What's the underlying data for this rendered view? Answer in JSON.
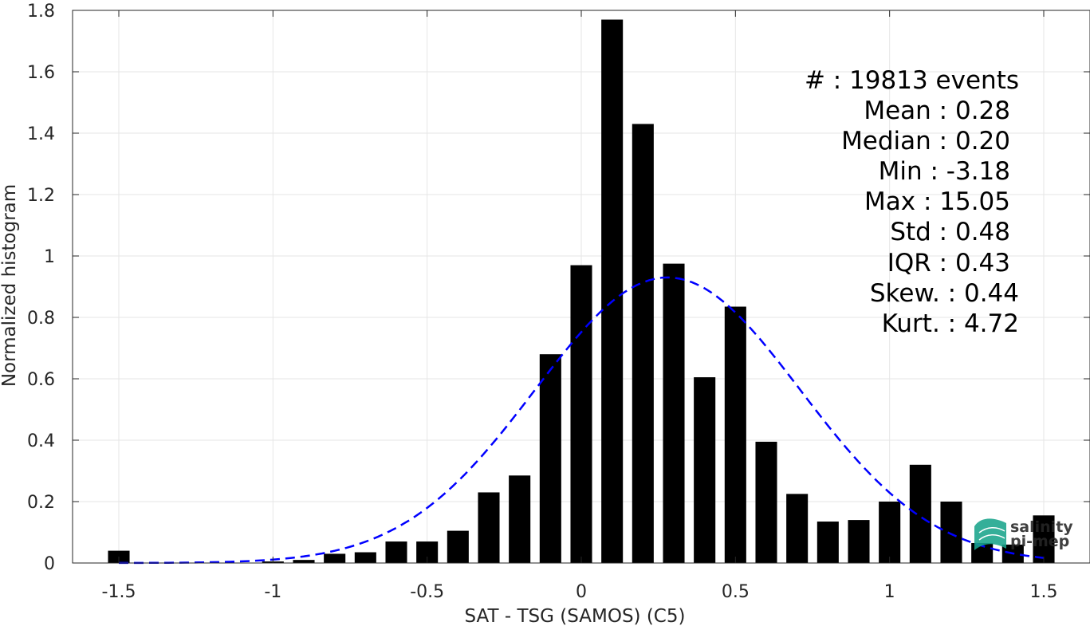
{
  "chart_data": {
    "type": "bar",
    "xlabel": "SAT - TSG (SAMOS) (C5)",
    "ylabel": "Normalized histogram",
    "xlim": [
      -1.65,
      1.65
    ],
    "ylim": [
      0,
      1.8
    ],
    "grid": true,
    "x_ticks": [
      {
        "v": -1.5,
        "label": "-1.5"
      },
      {
        "v": -1,
        "label": "-1"
      },
      {
        "v": -0.5,
        "label": "-0.5"
      },
      {
        "v": 0,
        "label": "0"
      },
      {
        "v": 0.5,
        "label": "0.5"
      },
      {
        "v": 1,
        "label": "1"
      },
      {
        "v": 1.5,
        "label": "1.5"
      }
    ],
    "y_ticks": [
      {
        "v": 0,
        "label": "0"
      },
      {
        "v": 0.2,
        "label": "0.2"
      },
      {
        "v": 0.4,
        "label": "0.4"
      },
      {
        "v": 0.6,
        "label": "0.6"
      },
      {
        "v": 0.8,
        "label": "0.8"
      },
      {
        "v": 1,
        "label": "1"
      },
      {
        "v": 1.2,
        "label": "1.2"
      },
      {
        "v": 1.4,
        "label": "1.4"
      },
      {
        "v": 1.6,
        "label": "1.6"
      },
      {
        "v": 1.8,
        "label": "1.8"
      }
    ],
    "bin_width": 0.1,
    "bar_width_fraction": 0.7,
    "bins": [
      {
        "x": -1.5,
        "y": 0.04
      },
      {
        "x": -1.4,
        "y": 0.0
      },
      {
        "x": -1.3,
        "y": 0.0
      },
      {
        "x": -1.2,
        "y": 0.0
      },
      {
        "x": -1.1,
        "y": 0.0
      },
      {
        "x": -1.0,
        "y": 0.005
      },
      {
        "x": -0.9,
        "y": 0.01
      },
      {
        "x": -0.8,
        "y": 0.03
      },
      {
        "x": -0.7,
        "y": 0.035
      },
      {
        "x": -0.6,
        "y": 0.07
      },
      {
        "x": -0.5,
        "y": 0.07
      },
      {
        "x": -0.4,
        "y": 0.105
      },
      {
        "x": -0.3,
        "y": 0.23
      },
      {
        "x": -0.2,
        "y": 0.285
      },
      {
        "x": -0.1,
        "y": 0.68
      },
      {
        "x": 0.0,
        "y": 0.97
      },
      {
        "x": 0.1,
        "y": 1.77
      },
      {
        "x": 0.2,
        "y": 1.43
      },
      {
        "x": 0.3,
        "y": 0.975
      },
      {
        "x": 0.4,
        "y": 0.605
      },
      {
        "x": 0.5,
        "y": 0.835
      },
      {
        "x": 0.6,
        "y": 0.395
      },
      {
        "x": 0.7,
        "y": 0.225
      },
      {
        "x": 0.8,
        "y": 0.135
      },
      {
        "x": 0.9,
        "y": 0.14
      },
      {
        "x": 1.0,
        "y": 0.2
      },
      {
        "x": 1.1,
        "y": 0.32
      },
      {
        "x": 1.2,
        "y": 0.2
      },
      {
        "x": 1.3,
        "y": 0.065
      },
      {
        "x": 1.4,
        "y": 0.06
      },
      {
        "x": 1.5,
        "y": 0.155
      }
    ],
    "fit_curve": {
      "type": "gaussian",
      "mean": 0.28,
      "std": 0.43,
      "peak": 0.93,
      "x_range": [
        -1.5,
        1.5
      ],
      "color": "#0000ff",
      "style": "dashed"
    },
    "bar_color": "#000000",
    "annotations": {
      "count": "#  : 19813 events",
      "mean": "Mean : 0.28",
      "median": "Median : 0.20",
      "min": "Min : -3.18",
      "max": "Max : 15.05",
      "std": "Std : 0.48",
      "iqr": "IQR : 0.43",
      "skew": "Skew. : 0.44",
      "kurt": "Kurt. : 4.72"
    }
  },
  "logo": {
    "line1": "salinity",
    "line2": "pi-mep",
    "color": "#1aa58c"
  }
}
